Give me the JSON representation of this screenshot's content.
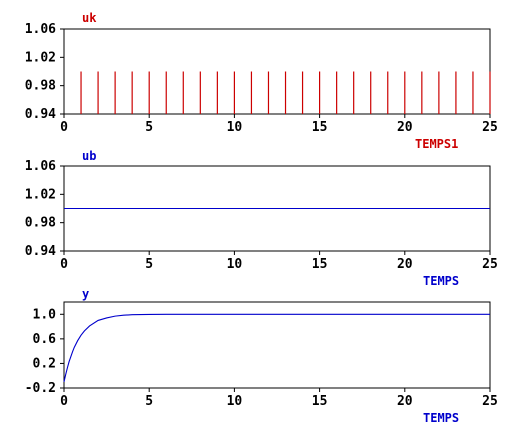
{
  "chart_data": [
    {
      "type": "line",
      "subtype": "impulse",
      "title": "uk",
      "xlabel": "TEMPS1",
      "color": "#cc0000",
      "xlim": [
        0,
        25
      ],
      "ylim": [
        0.94,
        1.06
      ],
      "xticks": [
        "0",
        "5",
        "10",
        "15",
        "20",
        "25"
      ],
      "yticks": [
        "0.94",
        "0.98",
        "1.02",
        "1.06"
      ],
      "grid": false,
      "series": [
        {
          "x": [
            1,
            2,
            3,
            4,
            5,
            6,
            7,
            8,
            9,
            10,
            11,
            12,
            13,
            14,
            15,
            16,
            17,
            18,
            19,
            20,
            21,
            22,
            23,
            24,
            25
          ],
          "y": [
            1,
            1,
            1,
            1,
            1,
            1,
            1,
            1,
            1,
            1,
            1,
            1,
            1,
            1,
            1,
            1,
            1,
            1,
            1,
            1,
            1,
            1,
            1,
            1,
            1
          ]
        }
      ]
    },
    {
      "type": "line",
      "title": "ub",
      "xlabel": "TEMPS",
      "color": "#0000cc",
      "xlim": [
        0,
        25
      ],
      "ylim": [
        0.94,
        1.06
      ],
      "xticks": [
        "0",
        "5",
        "10",
        "15",
        "20",
        "25"
      ],
      "yticks": [
        "0.94",
        "0.98",
        "1.02",
        "1.06"
      ],
      "grid": false,
      "series": [
        {
          "x": [
            0,
            25
          ],
          "y": [
            1,
            1
          ]
        }
      ]
    },
    {
      "type": "line",
      "title": "y",
      "xlabel": "TEMPS",
      "color": "#0000cc",
      "xlim": [
        0,
        25
      ],
      "ylim": [
        -0.2,
        1.2
      ],
      "xticks": [
        "0",
        "5",
        "10",
        "15",
        "20",
        "25"
      ],
      "yticks": [
        "-0.2",
        "0.2",
        "0.6",
        "1.0"
      ],
      "grid": false,
      "series": [
        {
          "x": [
            0,
            0.1,
            0.2,
            0.3,
            0.4,
            0.5,
            0.6,
            0.8,
            1.0,
            1.2,
            1.5,
            2.0,
            2.5,
            3.0,
            3.5,
            4.0,
            5.0,
            6.0,
            8.0,
            10.0,
            15.0,
            20.0,
            25.0
          ],
          "y": [
            -0.1,
            0.02,
            0.13,
            0.23,
            0.31,
            0.39,
            0.46,
            0.57,
            0.66,
            0.73,
            0.81,
            0.9,
            0.94,
            0.97,
            0.985,
            0.993,
            0.998,
            1.0,
            1.0,
            1.0,
            1.0,
            1.0,
            1.0
          ]
        }
      ]
    }
  ]
}
